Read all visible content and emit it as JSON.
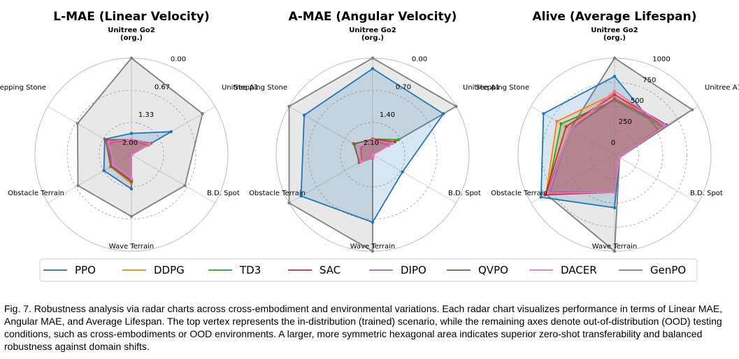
{
  "chart_data": [
    {
      "type": "radar",
      "title": "L-MAE (Linear Velocity)",
      "axes": [
        {
          "line1": "Unitree Go2",
          "line2": "(org.)"
        },
        {
          "line1": "Unitree A1"
        },
        {
          "line1": "B.D. Spot"
        },
        {
          "line1": "Wave Terrain"
        },
        {
          "line1": "Obstacle Terrain"
        },
        {
          "line1": "Stepping Stone"
        }
      ],
      "ticks": [
        "0.00",
        "0.67",
        "1.33",
        "2.00"
      ],
      "radial_range": [
        0,
        2
      ],
      "reversed": true,
      "series": [
        {
          "name": "PPO",
          "values": [
            1.56,
            1.05,
            2.0,
            1.29,
            1.34,
            1.36
          ]
        },
        {
          "name": "DDPG",
          "values": [
            1.7,
            1.62,
            2.0,
            1.4,
            1.5,
            1.38
          ]
        },
        {
          "name": "TD3",
          "values": [
            1.7,
            1.59,
            2.0,
            1.44,
            1.51,
            1.45
          ]
        },
        {
          "name": "SAC",
          "values": [
            1.71,
            1.56,
            2.0,
            1.47,
            1.52,
            1.48
          ]
        },
        {
          "name": "DIPO",
          "values": [
            1.7,
            1.55,
            2.0,
            1.47,
            1.53,
            1.44
          ]
        },
        {
          "name": "QVPO",
          "values": [
            1.69,
            1.53,
            2.0,
            1.45,
            1.51,
            1.38
          ]
        },
        {
          "name": "DACER",
          "values": [
            1.69,
            1.56,
            2.0,
            1.5,
            1.57,
            1.46
          ]
        },
        {
          "name": "GenPO",
          "values": [
            0.0,
            0.3,
            0.72,
            0.72,
            0.72,
            0.71
          ]
        }
      ]
    },
    {
      "type": "radar",
      "title": "A-MAE (Angular Velocity)",
      "axes": [
        {
          "line1": "Unitree Go2",
          "line2": "(org.)"
        },
        {
          "line1": "Unitree A1"
        },
        {
          "line1": "B.D. Spot"
        },
        {
          "line1": "Wave Terrain"
        },
        {
          "line1": "Obstacle Terrain"
        },
        {
          "line1": "Stepping Stone"
        }
      ],
      "ticks": [
        "0.00",
        "0.70",
        "1.40",
        "2.10"
      ],
      "radial_range": [
        0,
        2.1
      ],
      "reversed": true,
      "series": [
        {
          "name": "PPO",
          "values": [
            0.23,
            0.32,
            1.35,
            0.63,
            0.3,
            0.38
          ]
        },
        {
          "name": "DDPG",
          "values": [
            1.78,
            1.62,
            2.1,
            2.04,
            1.79,
            1.79
          ]
        },
        {
          "name": "TD3",
          "values": [
            1.76,
            1.45,
            2.1,
            2.03,
            1.76,
            1.64
          ]
        },
        {
          "name": "SAC",
          "values": [
            1.76,
            1.54,
            2.1,
            2.05,
            1.82,
            1.8
          ]
        },
        {
          "name": "DIPO",
          "values": [
            1.78,
            1.7,
            2.1,
            2.04,
            1.8,
            1.79
          ]
        },
        {
          "name": "QVPO",
          "values": [
            1.78,
            1.6,
            2.1,
            2.03,
            1.77,
            1.62
          ]
        },
        {
          "name": "DACER",
          "values": [
            1.78,
            1.6,
            2.1,
            2.04,
            1.8,
            1.76
          ]
        },
        {
          "name": "GenPO",
          "values": [
            0.0,
            0.0,
            2.1,
            0.0,
            0.0,
            0.0
          ]
        }
      ]
    },
    {
      "type": "radar",
      "title": "Alive (Average Lifespan)",
      "axes": [
        {
          "line1": "Unitree Go2",
          "line2": "(org.)"
        },
        {
          "line1": "Unitree A1"
        },
        {
          "line1": "B.D. Spot"
        },
        {
          "line1": "Wave Terrain"
        },
        {
          "line1": "Obstacle Terrain"
        },
        {
          "line1": "Stepping Stone"
        }
      ],
      "ticks": [
        "0",
        "250",
        "500",
        "750",
        "1000"
      ],
      "radial_range": [
        0,
        1000
      ],
      "reversed": false,
      "series": [
        {
          "name": "PPO",
          "values": [
            810,
            520,
            60,
            550,
            880,
            850
          ]
        },
        {
          "name": "DDPG",
          "values": [
            630,
            560,
            60,
            390,
            820,
            690
          ]
        },
        {
          "name": "TD3",
          "values": [
            560,
            580,
            60,
            390,
            810,
            640
          ]
        },
        {
          "name": "SAC",
          "values": [
            620,
            620,
            60,
            390,
            830,
            580
          ]
        },
        {
          "name": "DIPO",
          "values": [
            570,
            620,
            60,
            390,
            770,
            530
          ]
        },
        {
          "name": "QVPO",
          "values": [
            580,
            600,
            60,
            390,
            800,
            530
          ]
        },
        {
          "name": "DACER",
          "values": [
            660,
            600,
            60,
            390,
            800,
            530
          ]
        },
        {
          "name": "GenPO",
          "values": [
            1000,
            930,
            60,
            1000,
            820,
            530
          ]
        }
      ]
    }
  ],
  "legend": [
    {
      "name": "PPO",
      "color": "#1f77b4"
    },
    {
      "name": "DDPG",
      "color": "#ff7f0e"
    },
    {
      "name": "TD3",
      "color": "#2ca02c"
    },
    {
      "name": "SAC",
      "color": "#d62728"
    },
    {
      "name": "DIPO",
      "color": "#9467bd"
    },
    {
      "name": "QVPO",
      "color": "#8c564b"
    },
    {
      "name": "DACER",
      "color": "#e377c2"
    },
    {
      "name": "GenPO",
      "color": "#7f7f7f"
    }
  ],
  "caption": "Fig. 7. Robustness analysis via radar charts across cross-embodiment and environmental variations. Each radar chart visualizes performance in terms of Linear MAE, Angular MAE, and Average Lifespan. The top vertex represents the in-distribution (trained) scenario, while the remaining axes denote out-of-distribution (OOD) testing conditions, such as cross-embodiments or OOD environments. A larger, more symmetric hexagonal area indicates superior zero-shot transferability and balanced robustness against domain shifts."
}
